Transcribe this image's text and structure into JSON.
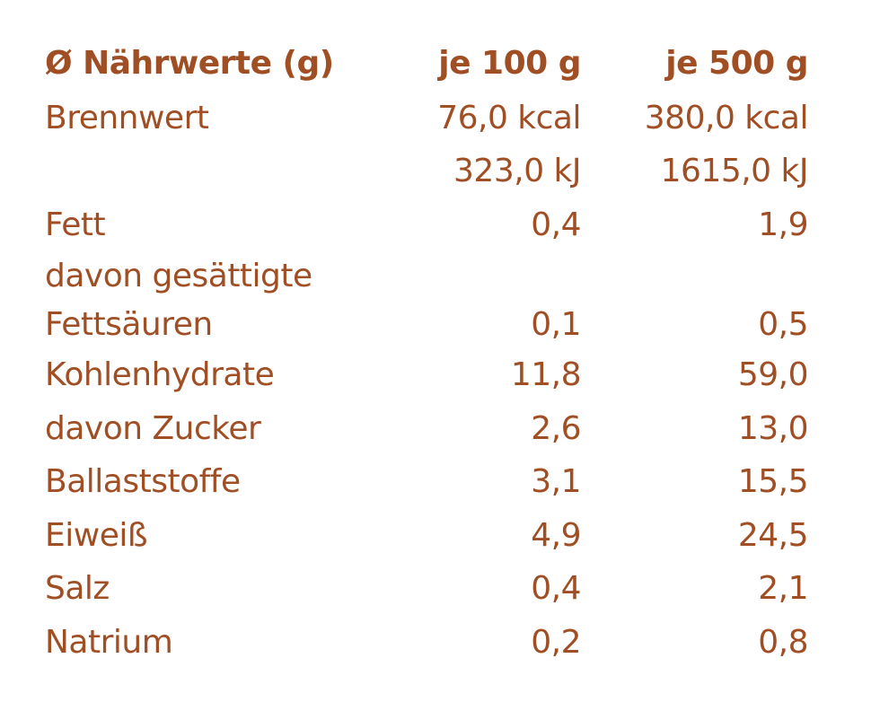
{
  "header": {
    "label": "Ø Nährwerte (g)",
    "col_100": "je 100 g",
    "col_500": "je 500 g"
  },
  "rows": [
    {
      "label": "Brennwert",
      "v100": "76,0 kcal",
      "v500": "380,0 kcal"
    },
    {
      "label": "",
      "v100": "323,0 kJ",
      "v500": "1615,0 kJ"
    },
    {
      "label": "Fett",
      "v100": "0,4",
      "v500": "1,9"
    },
    {
      "label": "davon gesättigte",
      "v100": "",
      "v500": ""
    },
    {
      "label": "Fettsäuren",
      "v100": "0,1",
      "v500": "0,5"
    },
    {
      "label": "Kohlenhydrate",
      "v100": "11,8",
      "v500": "59,0"
    },
    {
      "label": "davon Zucker",
      "v100": "2,6",
      "v500": "13,0"
    },
    {
      "label": "Ballaststoffe",
      "v100": "3,1",
      "v500": "15,5"
    },
    {
      "label": "Eiweiß",
      "v100": "4,9",
      "v500": "24,5"
    },
    {
      "label": "Salz",
      "v100": "0,4",
      "v500": "2,1"
    },
    {
      "label": "Natrium",
      "v100": "0,2",
      "v500": "0,8"
    }
  ],
  "colors": {
    "text": "#a04e24"
  }
}
